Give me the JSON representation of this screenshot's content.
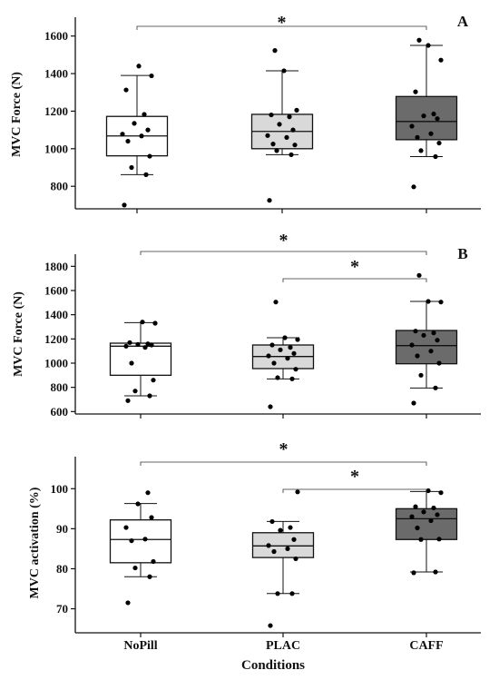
{
  "x_axis_label": "Conditions",
  "colors": {
    "NoPill": "#ffffff",
    "PLAC": "#d9d9d9",
    "CAFF": "#6b6b6b"
  },
  "chart_data": [
    {
      "type": "box",
      "panel_label": "A",
      "ylabel": "MVC Force (N)",
      "ylim": [
        680,
        1700
      ],
      "yticks": [
        800,
        1000,
        1200,
        1400,
        1600
      ],
      "categories": [
        "NoPill",
        "PLAC",
        "CAFF"
      ],
      "boxes": [
        {
          "name": "NoPill",
          "whisker_low": 862,
          "q1": 962,
          "median": 1068,
          "q3": 1172,
          "whisker_high": 1390,
          "points": [
            700,
            862,
            900,
            960,
            1040,
            1068,
            1078,
            1100,
            1135,
            1183,
            1313,
            1388,
            1440
          ]
        },
        {
          "name": "PLAC",
          "whisker_low": 968,
          "q1": 1000,
          "median": 1092,
          "q3": 1183,
          "whisker_high": 1415,
          "points": [
            725,
            968,
            990,
            1020,
            1025,
            1060,
            1070,
            1100,
            1130,
            1170,
            1180,
            1205,
            1415,
            1523
          ]
        },
        {
          "name": "CAFF",
          "whisker_low": 958,
          "q1": 1048,
          "median": 1145,
          "q3": 1278,
          "whisker_high": 1550,
          "points": [
            797,
            958,
            990,
            1030,
            1060,
            1080,
            1120,
            1160,
            1175,
            1185,
            1303,
            1472,
            1550,
            1578
          ]
        }
      ],
      "significance": [
        {
          "from": "NoPill",
          "to": "CAFF",
          "label": "*"
        }
      ]
    },
    {
      "type": "box",
      "panel_label": "B",
      "ylabel": "MVC Force (N)",
      "ylim": [
        580,
        1900
      ],
      "yticks": [
        600,
        800,
        1000,
        1200,
        1400,
        1600,
        1800
      ],
      "categories": [
        "NoPill",
        "PLAC",
        "CAFF"
      ],
      "boxes": [
        {
          "name": "NoPill",
          "whisker_low": 730,
          "q1": 900,
          "median": 1140,
          "q3": 1165,
          "whisker_high": 1335,
          "points": [
            690,
            730,
            770,
            860,
            1000,
            1130,
            1140,
            1150,
            1155,
            1160,
            1170,
            1330,
            1340
          ]
        },
        {
          "name": "PLAC",
          "whisker_low": 870,
          "q1": 955,
          "median": 1055,
          "q3": 1150,
          "whisker_high": 1210,
          "points": [
            640,
            870,
            880,
            950,
            1000,
            1040,
            1060,
            1080,
            1110,
            1130,
            1150,
            1195,
            1210,
            1505
          ]
        },
        {
          "name": "CAFF",
          "whisker_low": 795,
          "q1": 995,
          "median": 1145,
          "q3": 1270,
          "whisker_high": 1510,
          "points": [
            670,
            795,
            900,
            1000,
            1060,
            1100,
            1150,
            1190,
            1230,
            1250,
            1265,
            1505,
            1510,
            1725
          ]
        }
      ],
      "significance": [
        {
          "from": "NoPill",
          "to": "CAFF",
          "label": "*"
        },
        {
          "from": "PLAC",
          "to": "CAFF",
          "label": "*"
        }
      ]
    },
    {
      "type": "box",
      "panel_label": "",
      "ylabel": "MVC activation (%)",
      "ylim": [
        64,
        108
      ],
      "yticks": [
        70,
        80,
        90,
        100
      ],
      "categories": [
        "NoPill",
        "PLAC",
        "CAFF"
      ],
      "boxes": [
        {
          "name": "NoPill",
          "whisker_low": 78,
          "q1": 81.5,
          "median": 87.3,
          "q3": 92.2,
          "whisker_high": 96.3,
          "points": [
            71.5,
            78,
            80.2,
            81.8,
            87,
            87.4,
            90.3,
            92.8,
            96.2,
            99
          ]
        },
        {
          "name": "PLAC",
          "whisker_low": 73.8,
          "q1": 82.8,
          "median": 85.7,
          "q3": 89,
          "whisker_high": 91.8,
          "points": [
            65.8,
            73.8,
            73.8,
            82.5,
            84.3,
            85,
            85.8,
            87.3,
            89.6,
            90.3,
            91.8,
            99.2
          ]
        },
        {
          "name": "CAFF",
          "whisker_low": 79.2,
          "q1": 87.3,
          "median": 92.5,
          "q3": 95,
          "whisker_high": 99.3,
          "points": [
            79,
            79.2,
            87.3,
            87.4,
            90.2,
            92,
            93,
            93.5,
            94.2,
            95.2,
            95.5,
            99,
            99.5
          ]
        }
      ],
      "significance": [
        {
          "from": "NoPill",
          "to": "CAFF",
          "label": "*"
        },
        {
          "from": "PLAC",
          "to": "CAFF",
          "label": "*"
        }
      ]
    }
  ]
}
